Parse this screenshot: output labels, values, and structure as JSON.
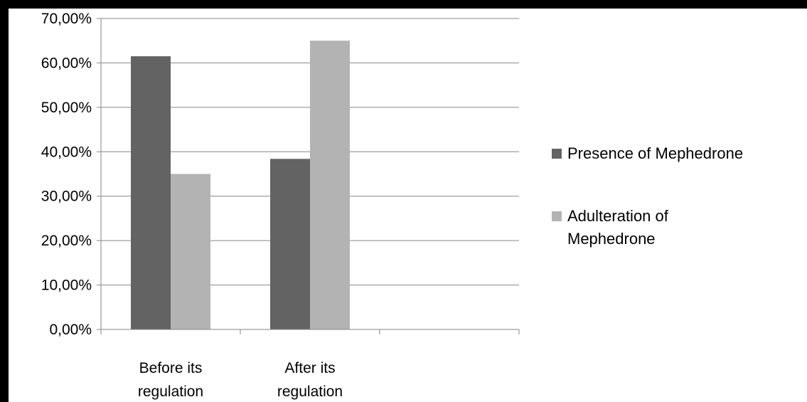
{
  "chart_data": {
    "type": "bar",
    "categories": [
      [
        "Before its",
        "regulation"
      ],
      [
        "After its",
        "regulation"
      ],
      []
    ],
    "series": [
      {
        "name": [
          "Presence of Mephedrone"
        ],
        "values": [
          61.5,
          38.4,
          null
        ],
        "color": "#636363"
      },
      {
        "name": [
          "Adulteration of",
          "Mephedrone"
        ],
        "values": [
          35.0,
          65.0,
          null
        ],
        "color": "#b3b3b3"
      }
    ],
    "y_ticks": [
      "0,00%",
      "10,00%",
      "20,00%",
      "30,00%",
      "40,00%",
      "50,00%",
      "60,00%",
      "70,00%"
    ],
    "ylim": [
      0,
      70
    ],
    "grid": true,
    "legend_position": "right"
  }
}
